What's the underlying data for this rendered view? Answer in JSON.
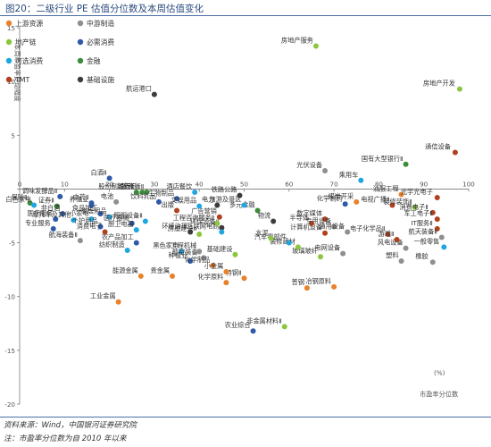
{
  "figure": {
    "title": "图20：二级行业 PE 估值分位数及本周估值变化",
    "source": "资料来源：Wind，中国银河证券研究院",
    "note": "注：市盈率分位数为自 2010 年以来"
  },
  "chart_data": {
    "type": "scatter",
    "title": "图20：二级行业 PE 估值分位数及本周估值变化",
    "xlabel": "市盈率分位数",
    "ylabel": "本周市盈率变动幅度",
    "y_unit": "(%)",
    "x_unit": "(%)",
    "xlim": [
      0,
      100
    ],
    "ylim": [
      -20,
      15
    ],
    "x_ticks": [
      0,
      10,
      20,
      30,
      40,
      50,
      60,
      70,
      80,
      90,
      100
    ],
    "y_ticks": [
      -20,
      -15,
      -10,
      -5,
      0,
      5,
      10,
      15
    ],
    "grid": false,
    "legend_position": "top-left",
    "groups": [
      {
        "key": "up",
        "name": "上游资源",
        "color": "#e8812b"
      },
      {
        "key": "mid",
        "name": "中游制造",
        "color": "#8f8f8f"
      },
      {
        "key": "re",
        "name": "地产链",
        "color": "#8cc63f"
      },
      {
        "key": "cons",
        "name": "必需消费",
        "color": "#2e5aa8"
      },
      {
        "key": "opt",
        "name": "可选消费",
        "color": "#1fa6e0"
      },
      {
        "key": "fin",
        "name": "金融",
        "color": "#3b8d3b"
      },
      {
        "key": "tmt",
        "name": "TMT",
        "color": "#b0401e"
      },
      {
        "key": "infra",
        "name": "基础设施",
        "color": "#3c3c3c"
      }
    ],
    "points": [
      {
        "label": "房地产服务",
        "x": 66,
        "y": 13.3,
        "g": "re"
      },
      {
        "label": "房地产开发",
        "x": 98,
        "y": 9.3,
        "g": "re"
      },
      {
        "label": "航运港口",
        "x": 30,
        "y": 8.8,
        "g": "infra"
      },
      {
        "label": "国有大型银行Ⅱ",
        "x": 86,
        "y": 2.3,
        "g": "fin"
      },
      {
        "label": "通信设备",
        "x": 97,
        "y": 3.4,
        "g": "tmt"
      },
      {
        "label": "光伏设备",
        "x": 68,
        "y": 1.7,
        "g": "mid"
      },
      {
        "label": "乘用车",
        "x": 76,
        "y": 0.8,
        "g": "opt"
      },
      {
        "label": "白酒Ⅱ",
        "x": 20,
        "y": 1.0,
        "g": "cons"
      },
      {
        "label": "股份制银行Ⅱ",
        "x": 26,
        "y": -0.3,
        "g": "fin"
      },
      {
        "label": "城商行Ⅱ",
        "x": 27.3,
        "y": -0.3,
        "g": "fin"
      },
      {
        "label": "农商行Ⅱ",
        "x": 28.3,
        "y": -0.3,
        "g": "fin"
      },
      {
        "label": "调味发酵品Ⅱ",
        "x": 9,
        "y": -0.7,
        "g": "cons"
      },
      {
        "label": "饮料乳品",
        "x": 31,
        "y": -1.2,
        "g": "cons"
      },
      {
        "label": "保险Ⅱ",
        "x": 2.3,
        "y": -1.3,
        "g": "fin"
      },
      {
        "label": "白色家电",
        "x": 3.2,
        "y": -1.5,
        "g": "opt"
      },
      {
        "label": "证券Ⅱ",
        "x": 8.3,
        "y": -1.6,
        "g": "fin"
      },
      {
        "label": "养殖业",
        "x": 16,
        "y": -1.5,
        "g": "cons"
      },
      {
        "label": "非白酒",
        "x": 9.6,
        "y": -2.3,
        "g": "cons"
      },
      {
        "label": "食品加工",
        "x": 18,
        "y": -2.3,
        "g": "cons"
      },
      {
        "label": "医疗服务",
        "x": 8,
        "y": -2.8,
        "g": "cons"
      },
      {
        "label": "摩托车及其他",
        "x": 12,
        "y": -2.9,
        "g": "opt"
      },
      {
        "label": "小家电",
        "x": 16,
        "y": -2.8,
        "g": "opt"
      },
      {
        "label": "家居用品",
        "x": 20,
        "y": -2.6,
        "g": "opt"
      },
      {
        "label": "专业服务",
        "x": 7.5,
        "y": -3.7,
        "g": "cons"
      },
      {
        "label": "个护用品",
        "x": 18,
        "y": -3.5,
        "g": "cons"
      },
      {
        "label": "医疗器械",
        "x": 25,
        "y": -3.2,
        "g": "cons"
      },
      {
        "label": "航海装备Ⅱ",
        "x": 13.5,
        "y": -4.8,
        "g": "mid"
      },
      {
        "label": "纺织制造",
        "x": 24,
        "y": -5.7,
        "g": "opt"
      },
      {
        "label": "农产品加工",
        "x": 26,
        "y": -5.0,
        "g": "cons"
      },
      {
        "label": "生物制品",
        "x": 35,
        "y": -0.9,
        "g": "cons"
      },
      {
        "label": "电池",
        "x": 21.5,
        "y": -1.2,
        "g": "mid"
      },
      {
        "label": "中药Ⅱ",
        "x": 16,
        "y": -1.3,
        "g": "cons"
      },
      {
        "label": "酒店餐饮",
        "x": 39,
        "y": -0.3,
        "g": "opt"
      },
      {
        "label": "铁路公路",
        "x": 49,
        "y": -0.6,
        "g": "infra"
      },
      {
        "label": "煤炭开采",
        "x": 75,
        "y": -1.2,
        "g": "up"
      },
      {
        "label": "化学制药",
        "x": 72.5,
        "y": -1.4,
        "g": "cons"
      },
      {
        "label": "电视广播Ⅱ",
        "x": 83,
        "y": -1.5,
        "g": "tmt"
      },
      {
        "label": "油服工程",
        "x": 85,
        "y": -0.5,
        "g": "up"
      },
      {
        "label": "光学光电子",
        "x": 93,
        "y": -0.8,
        "g": "tmt"
      },
      {
        "label": "装修装饰Ⅱ",
        "x": 88,
        "y": -1.7,
        "g": "re"
      },
      {
        "label": "消费电子Ⅱ",
        "x": 92,
        "y": -2.2,
        "g": "tmt"
      },
      {
        "label": "军工电子Ⅱ",
        "x": 93,
        "y": -2.8,
        "g": "tmt"
      },
      {
        "label": "数字媒体",
        "x": 68,
        "y": -2.8,
        "g": "tmt"
      },
      {
        "label": "多元金融",
        "x": 53,
        "y": -2.0,
        "g": "fin"
      },
      {
        "label": "电力",
        "x": 44,
        "y": -1.5,
        "g": "infra"
      },
      {
        "label": "物流",
        "x": 56.5,
        "y": -3.0,
        "g": "infra"
      },
      {
        "label": "环境治理",
        "x": 38,
        "y": -4.0,
        "g": "infra"
      },
      {
        "label": "黑色家电",
        "x": 36,
        "y": -5.8,
        "g": "opt"
      },
      {
        "label": "种植业",
        "x": 38,
        "y": -6.7,
        "g": "cons"
      },
      {
        "label": "能源金属",
        "x": 27,
        "y": -8.1,
        "g": "up"
      },
      {
        "label": "贵金属",
        "x": 34,
        "y": -8.1,
        "g": "up"
      },
      {
        "label": "工业金属",
        "x": 22,
        "y": -10.5,
        "g": "up"
      },
      {
        "label": "特钢Ⅱ",
        "x": 50,
        "y": -8.3,
        "g": "up"
      },
      {
        "label": "化学原料",
        "x": 46,
        "y": -8.7,
        "g": "up"
      },
      {
        "label": "普钢",
        "x": 64,
        "y": -9.2,
        "g": "up"
      },
      {
        "label": "冶钢原料",
        "x": 70,
        "y": -9.1,
        "g": "up"
      },
      {
        "label": "非金属材料Ⅱ",
        "x": 59,
        "y": -12.8,
        "g": "re"
      },
      {
        "label": "农业综合",
        "x": 52,
        "y": -13.2,
        "g": "cons"
      },
      {
        "label": "塑料",
        "x": 85,
        "y": -6.7,
        "g": "mid"
      },
      {
        "label": "橡胶",
        "x": 92,
        "y": -6.8,
        "g": "mid"
      },
      {
        "label": "风电设备",
        "x": 86,
        "y": -5.5,
        "g": "mid"
      },
      {
        "label": "玻璃玻纤",
        "x": 67,
        "y": -6.3,
        "g": "re"
      },
      {
        "label": "电网设备",
        "x": 72,
        "y": -6.0,
        "g": "mid"
      },
      {
        "label": "航空装备Ⅱ",
        "x": 41,
        "y": -6.4,
        "g": "mid"
      },
      {
        "label": "化学制品",
        "x": 43,
        "y": -7.1,
        "g": "up"
      },
      {
        "label": "小金属",
        "x": 46,
        "y": -7.7,
        "g": "up"
      },
      {
        "label": "基础建设",
        "x": 48,
        "y": -6.1,
        "g": "re"
      },
      {
        "label": "装修建材",
        "x": 62,
        "y": -5.4,
        "g": "re"
      },
      {
        "label": "汽车零部件",
        "x": 60,
        "y": -5.0,
        "g": "opt"
      },
      {
        "label": "水泥",
        "x": 56,
        "y": -4.6,
        "g": "re"
      },
      {
        "label": "环保设备Ⅱ",
        "x": 45,
        "y": -3.6,
        "g": "infra"
      },
      {
        "label": "互联网电商",
        "x": 45,
        "y": -4.0,
        "g": "opt"
      },
      {
        "label": "广告营销",
        "x": 44.5,
        "y": -2.6,
        "g": "tmt"
      },
      {
        "label": "旅游及景区",
        "x": 50,
        "y": -1.5,
        "g": "opt"
      },
      {
        "label": "计算机设备",
        "x": 68,
        "y": -4.1,
        "g": "tmt"
      },
      {
        "label": "半导体",
        "x": 65,
        "y": -3.2,
        "g": "tmt"
      },
      {
        "label": "电子化学品Ⅱ",
        "x": 82,
        "y": -4.2,
        "g": "tmt"
      },
      {
        "label": "游戏Ⅱ",
        "x": 84,
        "y": -4.7,
        "g": "tmt"
      },
      {
        "label": "IT服务Ⅱ",
        "x": 93,
        "y": -3.7,
        "g": "tmt"
      },
      {
        "label": "航天装备Ⅱ",
        "x": 94,
        "y": -4.5,
        "g": "mid"
      },
      {
        "label": "一般零售",
        "x": 94.5,
        "y": -5.4,
        "g": "opt"
      },
      {
        "label": "专用设备",
        "x": 70,
        "y": -3.5,
        "g": "mid"
      },
      {
        "label": "通用设备",
        "x": 73,
        "y": -4.0,
        "g": "mid"
      },
      {
        "label": "房屋建设Ⅱ",
        "x": 40,
        "y": -4.2,
        "g": "re"
      },
      {
        "label": "工程机械",
        "x": 40,
        "y": -5.8,
        "g": "mid"
      },
      {
        "label": "照明设备Ⅱ",
        "x": 28,
        "y": -3.0,
        "g": "opt"
      },
      {
        "label": "厨卫电器",
        "x": 26,
        "y": -3.8,
        "g": "opt"
      },
      {
        "label": "消费电子",
        "x": 19,
        "y": -4.0,
        "g": "tmt"
      },
      {
        "label": "出版",
        "x": 35,
        "y": -2.0,
        "g": "tmt"
      },
      {
        "label": "文娱用品",
        "x": 40,
        "y": -1.6,
        "g": "opt"
      },
      {
        "label": "工程咨询服务Ⅱ",
        "x": 44,
        "y": -3.2,
        "g": "re"
      }
    ]
  }
}
